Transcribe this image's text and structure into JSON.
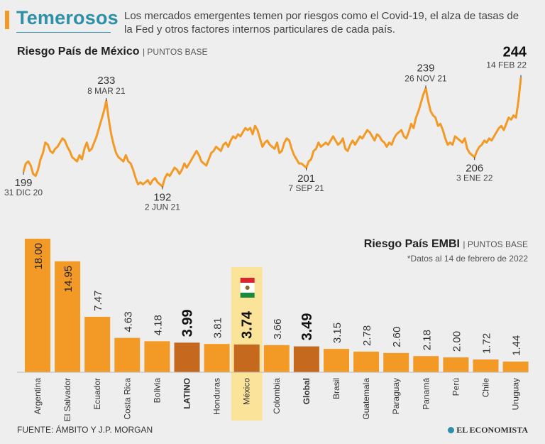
{
  "header": {
    "title": "Temerosos",
    "subtitle": "Los mercados emergentes temen por riesgos como el Covid-19, el alza de tasas de la Fed y otros factores internos particulares de cada país."
  },
  "colors": {
    "accent": "#f29a25",
    "title": "#2d8fa8",
    "line": "#f29a25",
    "bar": "#f29a25",
    "bar_highlight": "#c5691f",
    "mexico_bg": "#fbe39a"
  },
  "line_chart": {
    "title": "Riesgo País de México",
    "unit": "PUNTOS BASE"
  },
  "bar_chart": {
    "title": "Riesgo País EMBI",
    "unit": "PUNTOS BASE",
    "note": "*Datos al 14 de febrero de 2022"
  },
  "footer": {
    "source": "FUENTE: ÁMBITO Y J.P. MORGAN",
    "brand": "EL ECONOMISTA"
  },
  "chart_data": [
    {
      "type": "line",
      "title": "Riesgo País de México",
      "ylabel": "Puntos base",
      "x_range": [
        "31 DIC 20",
        "14 FEB 22"
      ],
      "ylim": [
        185,
        250
      ],
      "annotations": [
        {
          "value": "199",
          "date": "31 DIC 20",
          "pos": "below",
          "bold": false
        },
        {
          "value": "233",
          "date": "8 MAR 21",
          "pos": "above",
          "bold": false
        },
        {
          "value": "192",
          "date": "2 JUN 21",
          "pos": "below",
          "bold": false
        },
        {
          "value": "201",
          "date": "7 SEP 21",
          "pos": "below",
          "bold": false
        },
        {
          "value": "239",
          "date": "26 NOV 21",
          "pos": "above",
          "bold": false
        },
        {
          "value": "206",
          "date": "3 ENE 22",
          "pos": "below",
          "bold": false
        },
        {
          "value": "244",
          "date": "14 FEB 22",
          "pos": "above",
          "bold": true
        }
      ],
      "series": [
        {
          "name": "Riesgo País de México",
          "values": [
            199,
            203,
            204,
            202,
            198,
            197,
            200,
            205,
            208,
            213,
            212,
            209,
            208,
            210,
            211,
            213,
            215,
            214,
            211,
            209,
            206,
            205,
            204,
            207,
            205,
            210,
            213,
            209,
            210,
            213,
            216,
            220,
            224,
            228,
            233,
            224,
            217,
            212,
            208,
            206,
            205,
            204,
            207,
            204,
            203,
            200,
            196,
            193,
            194,
            193,
            194,
            195,
            193,
            195,
            196,
            194,
            193,
            192,
            196,
            198,
            197,
            199,
            201,
            200,
            198,
            200,
            203,
            201,
            203,
            205,
            207,
            209,
            207,
            204,
            203,
            202,
            205,
            208,
            209,
            211,
            210,
            209,
            212,
            213,
            211,
            214,
            216,
            215,
            217,
            216,
            218,
            220,
            219,
            220,
            217,
            221,
            219,
            215,
            211,
            213,
            214,
            212,
            211,
            210,
            213,
            208,
            209,
            213,
            215,
            214,
            210,
            207,
            205,
            203,
            203,
            202,
            201,
            204,
            205,
            209,
            210,
            213,
            211,
            212,
            213,
            212,
            214,
            216,
            214,
            212,
            213,
            215,
            210,
            209,
            212,
            214,
            212,
            214,
            216,
            215,
            217,
            219,
            218,
            216,
            214,
            217,
            216,
            214,
            213,
            211,
            213,
            212,
            215,
            217,
            218,
            219,
            216,
            215,
            218,
            222,
            220,
            225,
            228,
            232,
            236,
            239,
            233,
            228,
            226,
            225,
            221,
            222,
            219,
            215,
            212,
            213,
            212,
            216,
            215,
            214,
            213,
            215,
            210,
            208,
            207,
            206,
            209,
            211,
            212,
            214,
            213,
            215,
            214,
            216,
            218,
            220,
            221,
            219,
            222,
            225,
            224,
            226,
            225,
            233,
            244
          ]
        }
      ]
    },
    {
      "type": "bar",
      "title": "Riesgo País EMBI",
      "ylabel": "Puntos base",
      "categories": [
        "Argentina",
        "El Salvador",
        "Ecuador",
        "Costa Rica",
        "Bolivia",
        "LATINO",
        "Honduras",
        "México",
        "Colombia",
        "Global",
        "Brasil",
        "Guatemala",
        "Paraguay",
        "Panamá",
        "Perú",
        "Chile",
        "Uruguay"
      ],
      "labels": [
        "18.00",
        "14.95",
        "7.47",
        "4.63",
        "4.18",
        "3.99",
        "3.81",
        "3.74",
        "3.66",
        "3.49",
        "3.15",
        "2.78",
        "2.60",
        "2.18",
        "2.00",
        "1.72",
        "1.44"
      ],
      "values": [
        18.0,
        14.95,
        7.47,
        4.63,
        4.18,
        3.99,
        3.81,
        3.74,
        3.66,
        3.49,
        3.15,
        2.78,
        2.6,
        2.18,
        2.0,
        1.72,
        1.44
      ],
      "highlight": [
        "LATINO",
        "México",
        "Global"
      ],
      "ylim": [
        0,
        18
      ]
    }
  ]
}
